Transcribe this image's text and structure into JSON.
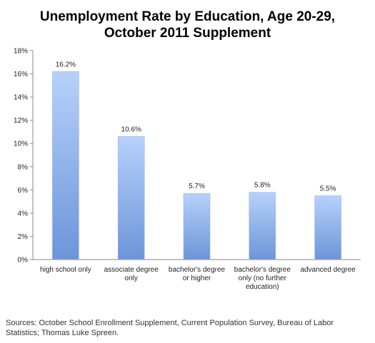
{
  "chart_data": {
    "type": "bar",
    "title_lines": [
      "Unemployment Rate by Education, Age 20-29,",
      "October 2011 Supplement"
    ],
    "categories": [
      [
        "high school only"
      ],
      [
        "associate degree",
        "only"
      ],
      [
        "bachelor's degree",
        "or higher"
      ],
      [
        "bachelor's degree",
        "only (no further",
        "education)"
      ],
      [
        "advanced degree"
      ]
    ],
    "values": [
      16.2,
      10.6,
      5.7,
      5.8,
      5.5
    ],
    "value_labels": [
      "16.2%",
      "10.6%",
      "5.7%",
      "5.8%",
      "5.5%"
    ],
    "ylim": [
      0,
      18
    ],
    "yticks": [
      0,
      2,
      4,
      6,
      8,
      10,
      12,
      14,
      16,
      18
    ],
    "ytick_labels": [
      "0%",
      "2%",
      "4%",
      "6%",
      "8%",
      "10%",
      "12%",
      "14%",
      "16%",
      "18%"
    ],
    "xlabel": "",
    "ylabel": "",
    "grid": false,
    "bar_color_top": "#b7d1fb",
    "bar_color_bottom": "#6c95d9"
  },
  "source_note": "Sources: October School Enrollment Supplement, Current Population Survey, Bureau of Labor Statistics; Thomas Luke Spreen."
}
